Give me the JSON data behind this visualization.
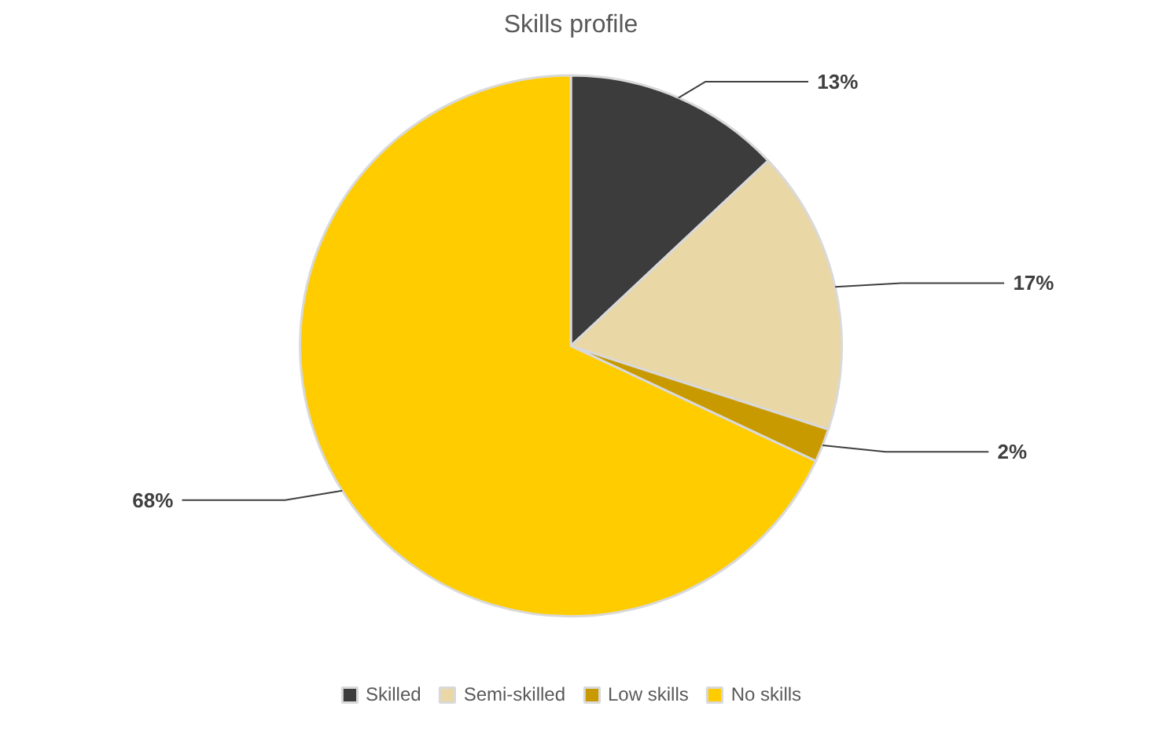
{
  "chart_data": {
    "type": "pie",
    "title": "Skills profile",
    "categories": [
      "Skilled",
      "Semi-skilled",
      "Low skills",
      "No skills"
    ],
    "values": [
      13,
      17,
      2,
      68
    ],
    "colors": [
      "#3c3c3c",
      "#ead7a6",
      "#c99a00",
      "#ffcc00"
    ],
    "value_labels": [
      "13%",
      "17%",
      "2%",
      "68%"
    ],
    "legend": "bottom"
  }
}
